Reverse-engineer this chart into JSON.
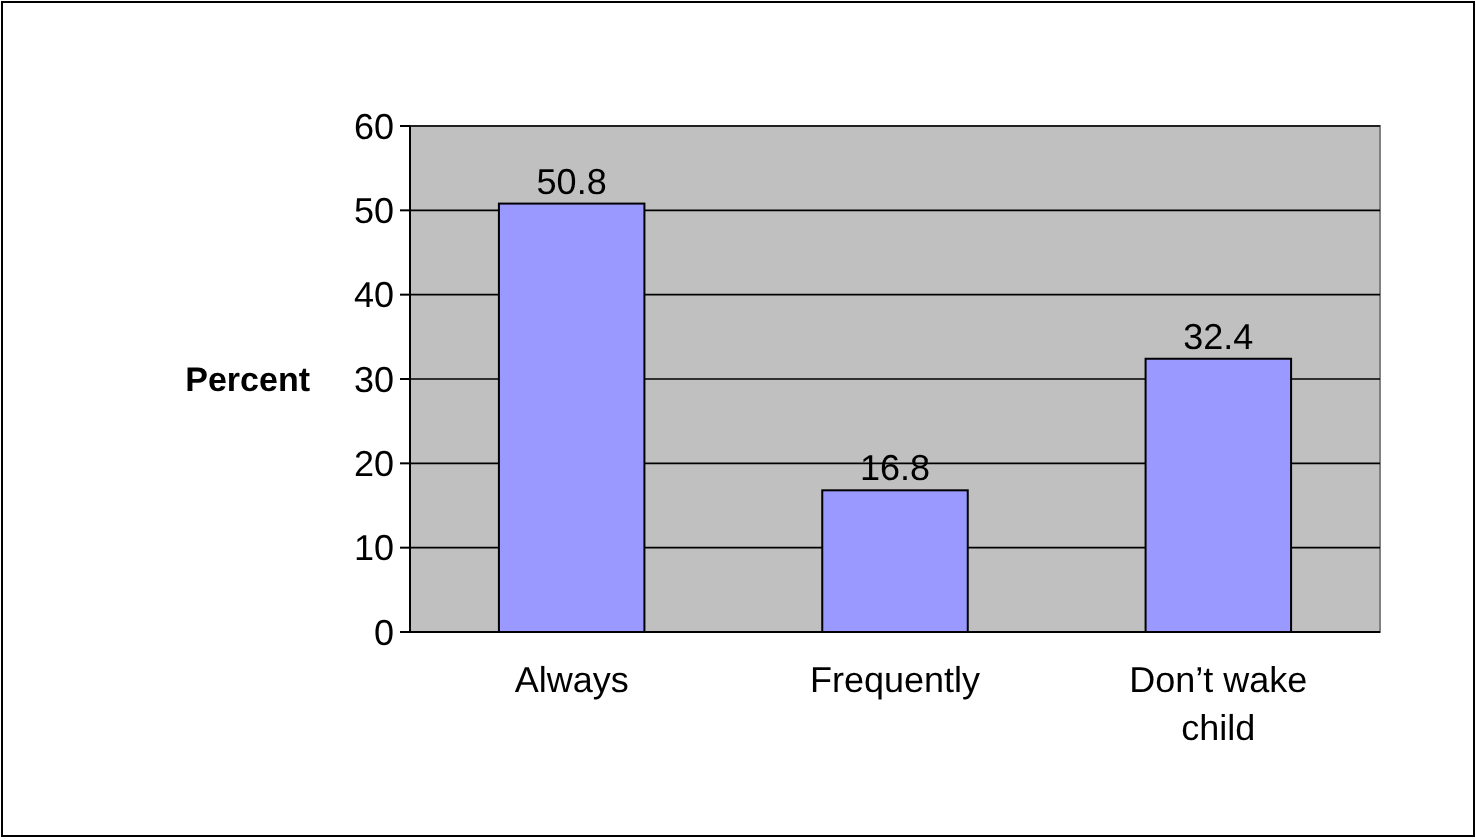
{
  "chart_data": {
    "type": "bar",
    "ylabel": "Percent",
    "categories": [
      "Always",
      "Frequently",
      "Don’t wake child"
    ],
    "values": [
      50.8,
      16.8,
      32.4
    ],
    "color": "#9999ff",
    "ylim": [
      0,
      60
    ],
    "yticks": [
      0,
      10,
      20,
      30,
      40,
      50,
      60
    ],
    "grid": "y",
    "data_labels": true
  }
}
